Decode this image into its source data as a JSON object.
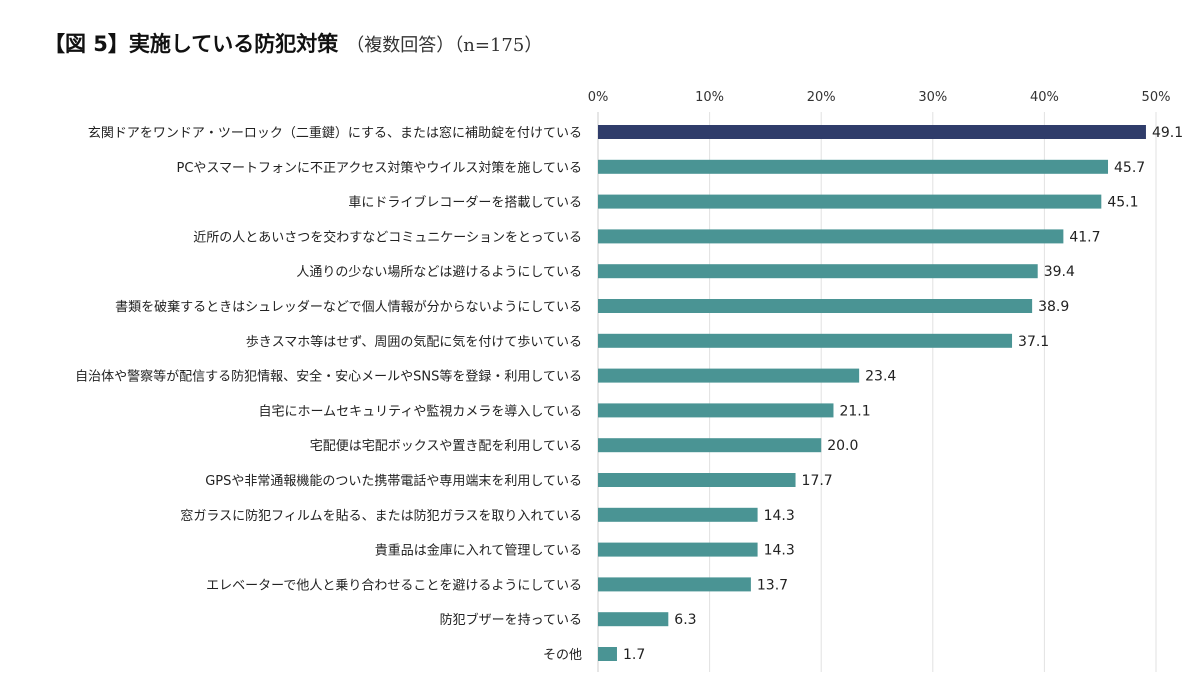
{
  "title": {
    "main": "【図 5】実施している防犯対策",
    "sub": "（複数回答）（n=175）"
  },
  "colors": {
    "highlight_bar": "#2f3c6a",
    "bar": "#4a9494",
    "grid": "#e2e2e2",
    "axis": "#cccccc"
  },
  "chart_data": {
    "type": "bar",
    "orientation": "horizontal",
    "title": "【図 5】実施している防犯対策（複数回答）（n=175）",
    "xlim": [
      0,
      50
    ],
    "xticks": [
      "0%",
      "10%",
      "20%",
      "30%",
      "40%",
      "50%"
    ],
    "grid": true,
    "legend": "none",
    "categories": [
      "玄関ドアをワンドア・ツーロック（二重鍵）にする、または窓に補助錠を付けている",
      "PCやスマートフォンに不正アクセス対策やウイルス対策を施している",
      "車にドライブレコーダーを搭載している",
      "近所の人とあいさつを交わすなどコミュニケーションをとっている",
      "人通りの少ない場所などは避けるようにしている",
      "書類を破棄するときはシュレッダーなどで個人情報が分からないようにしている",
      "歩きスマホ等はせず、周囲の気配に気を付けて歩いている",
      "自治体や警察等が配信する防犯情報、安全・安心メールやSNS等を登録・利用している",
      "自宅にホームセキュリティや監視カメラを導入している",
      "宅配便は宅配ボックスや置き配を利用している",
      "GPSや非常通報機能のついた携帯電話や専用端末を利用している",
      "窓ガラスに防犯フィルムを貼る、または防犯ガラスを取り入れている",
      "貴重品は金庫に入れて管理している",
      "エレベーターで他人と乗り合わせることを避けるようにしている",
      "防犯ブザーを持っている",
      "その他"
    ],
    "values": [
      49.1,
      45.7,
      45.1,
      41.7,
      39.4,
      38.9,
      37.1,
      23.4,
      21.1,
      20.0,
      17.7,
      14.3,
      14.3,
      13.7,
      6.3,
      1.7
    ],
    "value_labels": [
      "49.1",
      "45.7",
      "45.1",
      "41.7",
      "39.4",
      "38.9",
      "37.1",
      "23.4",
      "21.1",
      "20.0",
      "17.7",
      "14.3",
      "14.3",
      "13.7",
      "6.3",
      "1.7"
    ],
    "highlight_index": 0
  }
}
